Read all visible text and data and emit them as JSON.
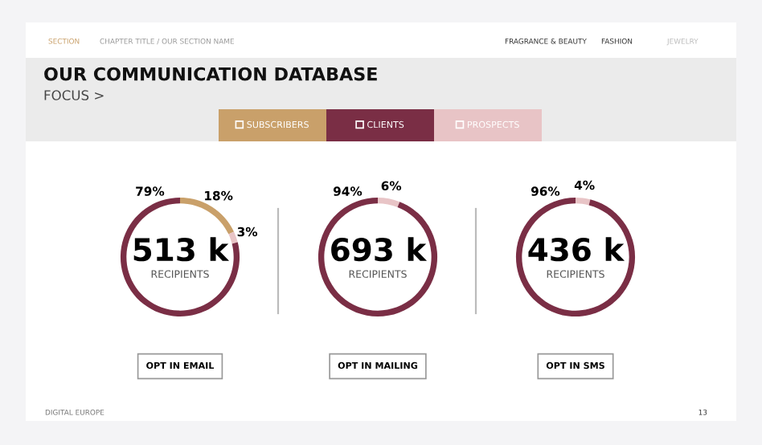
{
  "chart_data": [
    {
      "type": "other",
      "title": "OUR COMMUNICATION DATABASE",
      "subtitle": "FOCUS >",
      "annotations": [
        "SECTION",
        "CHAPTER TITLE / OUR SECTION NAME",
        "FRAGRANCE & BEAUTY",
        "FASHION",
        "JEWELRY",
        "DIGITAL EUROPE",
        "13"
      ]
    },
    {
      "type": "donut",
      "title": "513 k",
      "subtitle": "RECIPIENTS",
      "xlabel": "OPT IN EMAIL",
      "categories": [
        "SUBSCRIBERS",
        "PROSPECTS",
        "CLIENTS"
      ],
      "values": [
        18,
        3,
        79
      ],
      "colors": [
        "#c9a06a",
        "#e8c4c6",
        "#7a2e45"
      ],
      "value_labels": [
        "18%",
        "3%",
        "79%"
      ],
      "legend": "top"
    },
    {
      "type": "donut",
      "title": "693 k",
      "subtitle": "RECIPIENTS",
      "xlabel": "OPT IN MAILING",
      "categories": [
        null,
        null
      ],
      "values": [
        6,
        94
      ],
      "colors": [
        "#e8c4c6",
        "#7a2e45"
      ],
      "value_labels": [
        "6%",
        "94%"
      ]
    },
    {
      "type": "donut",
      "title": "436 k",
      "subtitle": "RECIPIENTS",
      "xlabel": "OPT IN SMS",
      "categories": [
        null,
        null
      ],
      "values": [
        4,
        96
      ],
      "colors": [
        "#e8c4c6",
        "#7a2e45"
      ],
      "value_labels": [
        "4%",
        "96%"
      ]
    }
  ]
}
